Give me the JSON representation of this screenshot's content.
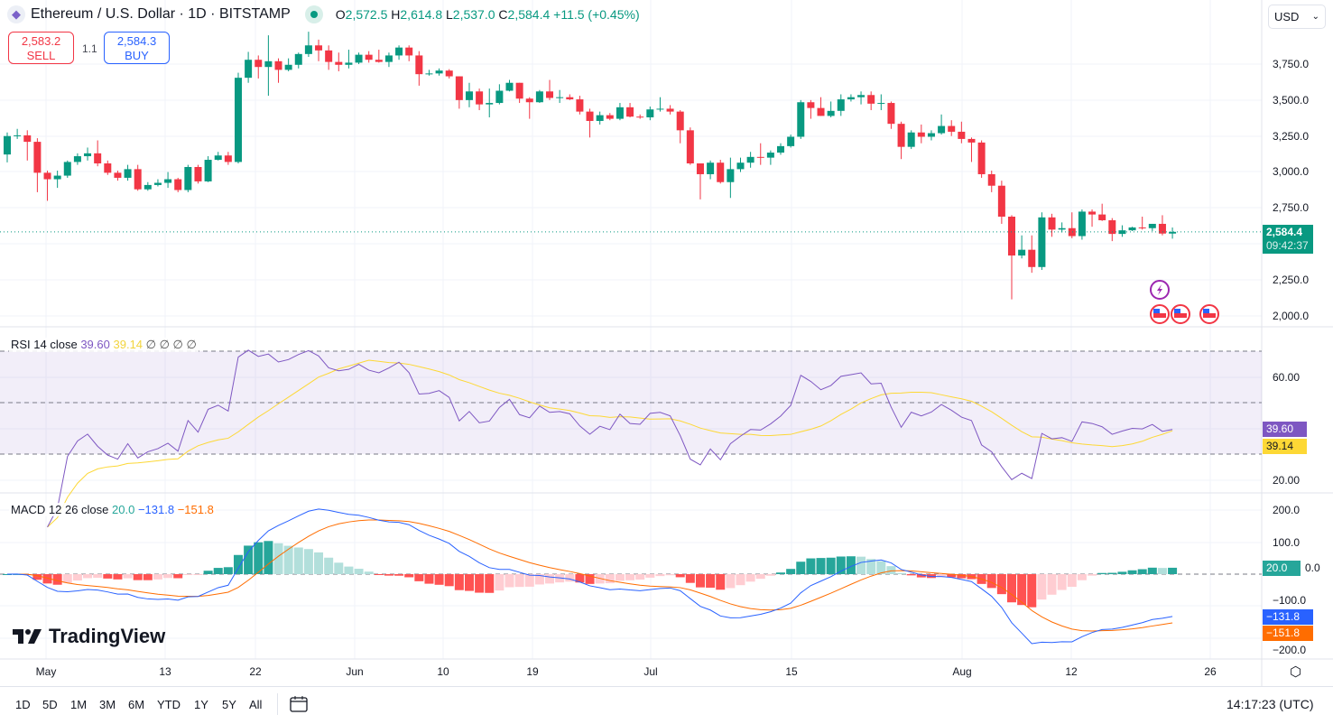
{
  "header": {
    "symbol_icon": "ethereum-icon",
    "title": "Ethereum / U.S. Dollar · 1D · BITSTAMP",
    "status": "market-open",
    "ohlc": {
      "o_label": "O",
      "o": "2,572.5",
      "h_label": "H",
      "h": "2,614.8",
      "l_label": "L",
      "l": "2,537.0",
      "c_label": "C",
      "c": "2,584.4",
      "change": "+11.5 (+0.45%)"
    }
  },
  "trade": {
    "sell_price": "2,583.2",
    "sell_label": "SELL",
    "spread": "1.1",
    "buy_price": "2,584.3",
    "buy_label": "BUY"
  },
  "currency": "USD",
  "price_axis": [
    "3,750.0",
    "3,500.0",
    "3,250.0",
    "3,000.0",
    "2,750.0",
    "2,250.0",
    "2,000.0"
  ],
  "last_price": {
    "value": "2,584.4",
    "countdown": "09:42:37"
  },
  "rsi": {
    "legend": "RSI 14 close",
    "value": "39.60",
    "ma_value": "39.14",
    "extras": "∅ ∅ ∅ ∅",
    "axis": [
      "60.00",
      "20.00"
    ],
    "color": "#7e57c2",
    "ma_color": "#fdd835"
  },
  "macd": {
    "legend": "MACD 12 26 close",
    "hist": "20.0",
    "macd": "−131.8",
    "signal": "−151.8",
    "axis": [
      "200.0",
      "100.0",
      "0.0",
      "−100.0",
      "−200.0"
    ],
    "hist_color": "#26a69a",
    "macd_color": "#2962ff",
    "signal_color": "#ff6d00"
  },
  "time_axis": [
    "May",
    "13",
    "22",
    "Jun",
    "10",
    "19",
    "Jul",
    "15",
    "Aug",
    "12",
    "26"
  ],
  "ranges": [
    "1D",
    "5D",
    "1M",
    "3M",
    "6M",
    "YTD",
    "1Y",
    "5Y",
    "All"
  ],
  "clock": "14:17:23 (UTC)",
  "brand": "TradingView",
  "colors": {
    "up": "#089981",
    "down": "#f23645"
  },
  "chart_data": {
    "type": "candlestick",
    "interval": "1D",
    "ylim": [
      1950,
      3980
    ],
    "columns": [
      "date",
      "open",
      "high",
      "low",
      "close"
    ],
    "ohlc": [
      [
        "04-27",
        3122,
        3275,
        3067,
        3250
      ],
      [
        "04-28",
        3250,
        3300,
        3230,
        3255
      ],
      [
        "04-29",
        3255,
        3290,
        3080,
        3210
      ],
      [
        "04-30",
        3210,
        3235,
        2860,
        2995
      ],
      [
        "05-01",
        2995,
        3010,
        2800,
        2950
      ],
      [
        "05-02",
        2950,
        3010,
        2890,
        2975
      ],
      [
        "05-03",
        2975,
        3080,
        2960,
        3070
      ],
      [
        "05-04",
        3070,
        3130,
        3050,
        3110
      ],
      [
        "05-05",
        3110,
        3170,
        3080,
        3130
      ],
      [
        "05-06",
        3130,
        3220,
        3040,
        3060
      ],
      [
        "05-07",
        3060,
        3080,
        2980,
        2995
      ],
      [
        "05-08",
        2995,
        3010,
        2940,
        2960
      ],
      [
        "05-09",
        2960,
        3050,
        2940,
        3020
      ],
      [
        "05-10",
        3020,
        3050,
        2870,
        2880
      ],
      [
        "05-11",
        2880,
        2930,
        2870,
        2910
      ],
      [
        "05-12",
        2910,
        2950,
        2900,
        2925
      ],
      [
        "05-13",
        2925,
        3000,
        2890,
        2950
      ],
      [
        "05-14",
        2950,
        2960,
        2860,
        2875
      ],
      [
        "05-15",
        2875,
        3050,
        2860,
        3035
      ],
      [
        "05-16",
        3035,
        3050,
        2920,
        2935
      ],
      [
        "05-17",
        2935,
        3110,
        2930,
        3085
      ],
      [
        "05-18",
        3085,
        3140,
        3080,
        3115
      ],
      [
        "05-19",
        3115,
        3140,
        3050,
        3070
      ],
      [
        "05-20",
        3070,
        3690,
        3060,
        3655
      ],
      [
        "05-21",
        3655,
        3835,
        3620,
        3780
      ],
      [
        "05-22",
        3780,
        3810,
        3650,
        3730
      ],
      [
        "05-23",
        3730,
        3950,
        3530,
        3770
      ],
      [
        "05-24",
        3770,
        3790,
        3620,
        3710
      ],
      [
        "05-25",
        3710,
        3790,
        3700,
        3745
      ],
      [
        "05-26",
        3745,
        3830,
        3720,
        3820
      ],
      [
        "05-27",
        3820,
        3975,
        3800,
        3880
      ],
      [
        "05-28",
        3880,
        3920,
        3770,
        3845
      ],
      [
        "05-29",
        3845,
        3880,
        3710,
        3765
      ],
      [
        "05-30",
        3765,
        3830,
        3700,
        3745
      ],
      [
        "05-31",
        3745,
        3850,
        3720,
        3760
      ],
      [
        "06-01",
        3760,
        3830,
        3750,
        3815
      ],
      [
        "06-02",
        3815,
        3840,
        3760,
        3780
      ],
      [
        "06-03",
        3780,
        3850,
        3760,
        3765
      ],
      [
        "06-04",
        3765,
        3830,
        3730,
        3810
      ],
      [
        "06-05",
        3810,
        3880,
        3780,
        3865
      ],
      [
        "06-06",
        3865,
        3880,
        3770,
        3810
      ],
      [
        "06-07",
        3810,
        3840,
        3600,
        3680
      ],
      [
        "06-08",
        3680,
        3710,
        3670,
        3685
      ],
      [
        "06-09",
        3685,
        3720,
        3670,
        3705
      ],
      [
        "06-10",
        3705,
        3715,
        3650,
        3665
      ],
      [
        "06-11",
        3665,
        3665,
        3440,
        3500
      ],
      [
        "06-12",
        3500,
        3620,
        3450,
        3560
      ],
      [
        "06-13",
        3560,
        3580,
        3430,
        3470
      ],
      [
        "06-14",
        3470,
        3580,
        3380,
        3480
      ],
      [
        "06-15",
        3480,
        3610,
        3470,
        3565
      ],
      [
        "06-16",
        3565,
        3640,
        3560,
        3620
      ],
      [
        "06-17",
        3620,
        3620,
        3480,
        3510
      ],
      [
        "06-18",
        3510,
        3520,
        3370,
        3485
      ],
      [
        "06-19",
        3485,
        3570,
        3480,
        3560
      ],
      [
        "06-20",
        3560,
        3640,
        3500,
        3515
      ],
      [
        "06-21",
        3515,
        3570,
        3480,
        3520
      ],
      [
        "06-22",
        3520,
        3540,
        3500,
        3505
      ],
      [
        "06-23",
        3505,
        3530,
        3400,
        3420
      ],
      [
        "06-24",
        3420,
        3440,
        3240,
        3355
      ],
      [
        "06-25",
        3355,
        3420,
        3330,
        3395
      ],
      [
        "06-26",
        3395,
        3410,
        3360,
        3370
      ],
      [
        "06-27",
        3370,
        3480,
        3360,
        3450
      ],
      [
        "06-28",
        3450,
        3480,
        3380,
        3385
      ],
      [
        "06-29",
        3385,
        3400,
        3370,
        3380
      ],
      [
        "06-30",
        3380,
        3455,
        3360,
        3435
      ],
      [
        "07-01",
        3435,
        3520,
        3420,
        3440
      ],
      [
        "07-02",
        3440,
        3465,
        3400,
        3420
      ],
      [
        "07-03",
        3420,
        3430,
        3200,
        3290
      ],
      [
        "07-04",
        3290,
        3310,
        3050,
        3060
      ],
      [
        "07-05",
        3060,
        3060,
        2810,
        2985
      ],
      [
        "07-06",
        2985,
        3080,
        2950,
        3065
      ],
      [
        "07-07",
        3065,
        3085,
        2920,
        2930
      ],
      [
        "07-08",
        2930,
        3100,
        2820,
        3020
      ],
      [
        "07-09",
        3020,
        3100,
        3000,
        3065
      ],
      [
        "07-10",
        3065,
        3140,
        3030,
        3105
      ],
      [
        "07-11",
        3105,
        3200,
        3050,
        3100
      ],
      [
        "07-12",
        3100,
        3150,
        3050,
        3135
      ],
      [
        "07-13",
        3135,
        3200,
        3120,
        3180
      ],
      [
        "07-14",
        3180,
        3260,
        3170,
        3245
      ],
      [
        "07-15",
        3245,
        3500,
        3230,
        3485
      ],
      [
        "07-16",
        3485,
        3500,
        3370,
        3445
      ],
      [
        "07-17",
        3445,
        3520,
        3390,
        3390
      ],
      [
        "07-18",
        3390,
        3490,
        3380,
        3425
      ],
      [
        "07-19",
        3425,
        3540,
        3390,
        3505
      ],
      [
        "07-20",
        3505,
        3540,
        3490,
        3520
      ],
      [
        "07-21",
        3520,
        3560,
        3470,
        3535
      ],
      [
        "07-22",
        3535,
        3560,
        3430,
        3475
      ],
      [
        "07-23",
        3475,
        3540,
        3430,
        3480
      ],
      [
        "07-24",
        3480,
        3490,
        3300,
        3335
      ],
      [
        "07-25",
        3335,
        3350,
        3090,
        3175
      ],
      [
        "07-26",
        3175,
        3290,
        3160,
        3275
      ],
      [
        "07-27",
        3275,
        3330,
        3200,
        3245
      ],
      [
        "07-28",
        3245,
        3290,
        3220,
        3270
      ],
      [
        "07-29",
        3270,
        3400,
        3260,
        3320
      ],
      [
        "07-30",
        3320,
        3360,
        3250,
        3280
      ],
      [
        "07-31",
        3280,
        3350,
        3200,
        3230
      ],
      [
        "08-01",
        3230,
        3240,
        3070,
        3205
      ],
      [
        "08-02",
        3205,
        3220,
        2960,
        2985
      ],
      [
        "08-03",
        2985,
        3010,
        2860,
        2905
      ],
      [
        "08-04",
        2905,
        2940,
        2640,
        2690
      ],
      [
        "08-05",
        2690,
        2700,
        2115,
        2420
      ],
      [
        "08-06",
        2420,
        2560,
        2400,
        2460
      ],
      [
        "08-07",
        2460,
        2560,
        2300,
        2340
      ],
      [
        "08-08",
        2340,
        2720,
        2320,
        2685
      ],
      [
        "08-09",
        2685,
        2710,
        2550,
        2600
      ],
      [
        "08-10",
        2600,
        2650,
        2580,
        2610
      ],
      [
        "08-11",
        2610,
        2720,
        2540,
        2555
      ],
      [
        "08-12",
        2555,
        2740,
        2530,
        2725
      ],
      [
        "08-13",
        2725,
        2740,
        2620,
        2705
      ],
      [
        "08-14",
        2705,
        2780,
        2660,
        2665
      ],
      [
        "08-15",
        2665,
        2680,
        2520,
        2570
      ],
      [
        "08-16",
        2570,
        2630,
        2550,
        2595
      ],
      [
        "08-17",
        2595,
        2620,
        2590,
        2615
      ],
      [
        "08-18",
        2615,
        2690,
        2600,
        2610
      ],
      [
        "08-19",
        2610,
        2640,
        2590,
        2640
      ],
      [
        "08-20",
        2640,
        2700,
        2560,
        2572.5
      ],
      [
        "08-21",
        2572.5,
        2614.8,
        2537,
        2584.4
      ]
    ],
    "indicators": {
      "rsi": {
        "length": 14,
        "ma_length": 14,
        "bands": [
          70,
          50,
          30
        ],
        "ylim": [
          12,
          84
        ]
      },
      "macd": {
        "fast": 12,
        "slow": 26,
        "signal": 9,
        "ylim": [
          -265,
          250
        ]
      }
    },
    "events": [
      {
        "date": "08-21",
        "icon": "lightning-icon"
      },
      {
        "date": "08-21",
        "icon": "us-flag-icon"
      },
      {
        "date": "08-22",
        "icon": "us-flag-icon"
      },
      {
        "date": "08-26",
        "icon": "us-flag-icon"
      }
    ],
    "grid": true
  }
}
